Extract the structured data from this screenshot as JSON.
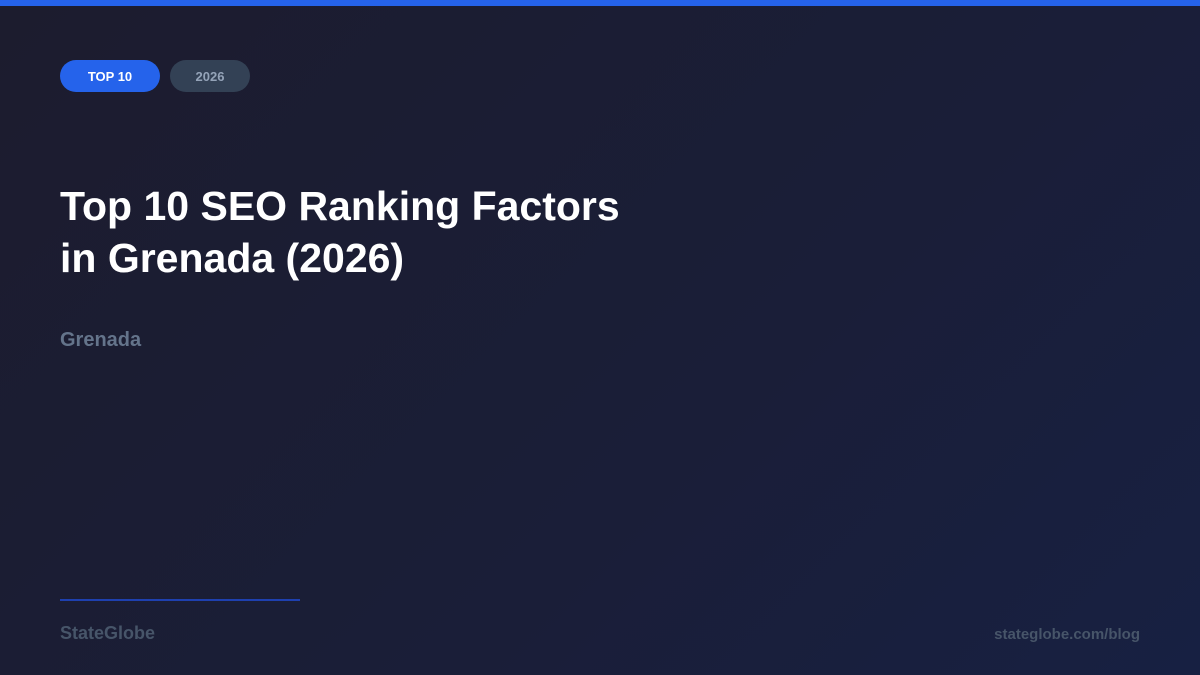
{
  "colors": {
    "accent": "#2563eb",
    "background": "#1c1c2e",
    "muted": "#64748b"
  },
  "badges": {
    "primary": "TOP 10",
    "secondary": "2026"
  },
  "title_line1": "Top 10 SEO Ranking Factors",
  "title_line2": "in Grenada (2026)",
  "subtitle": "Grenada",
  "footer": {
    "brand": "StateGlobe",
    "url": "stateglobe.com/blog"
  }
}
